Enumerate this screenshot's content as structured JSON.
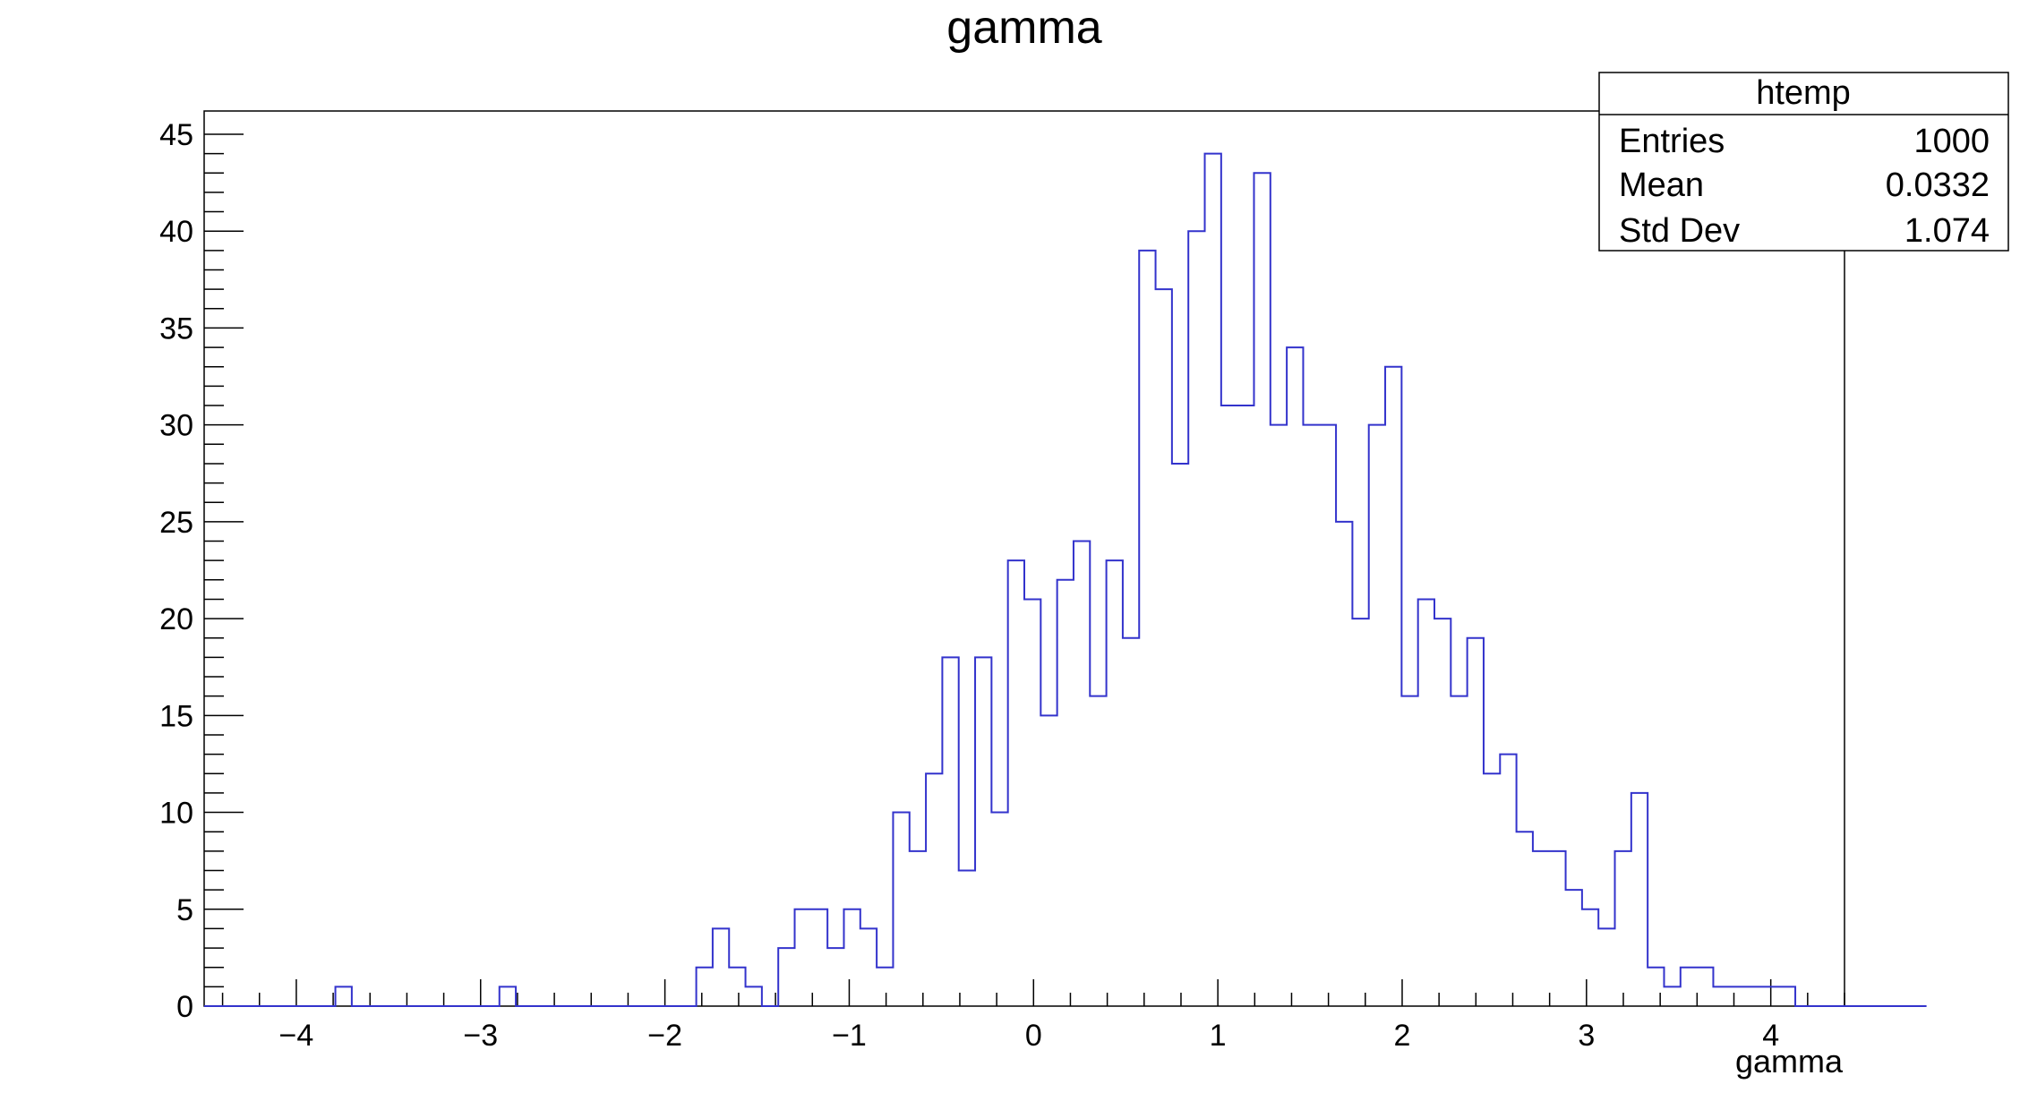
{
  "chart_data": {
    "type": "bar",
    "title": "gamma",
    "xlabel": "gamma",
    "ylabel": "",
    "xlim": [
      -4.5,
      4.4
    ],
    "ylim": [
      0,
      46.2
    ],
    "x_ticks": [
      -4,
      -3,
      -2,
      -1,
      0,
      1,
      2,
      3,
      4
    ],
    "x_tick_labels": [
      "−4",
      "−3",
      "−2",
      "−1",
      "0",
      "1",
      "2",
      "3",
      "4"
    ],
    "y_ticks": [
      0,
      5,
      10,
      15,
      20,
      25,
      30,
      35,
      40,
      45
    ],
    "y_tick_labels": [
      "0",
      "5",
      "10",
      "15",
      "20",
      "25",
      "30",
      "35",
      "40",
      "45"
    ],
    "bin_edges_start": -4.5,
    "bin_width": 0.089,
    "values": [
      0,
      0,
      0,
      0,
      0,
      0,
      0,
      0,
      1,
      0,
      0,
      0,
      0,
      0,
      0,
      0,
      0,
      0,
      1,
      0,
      0,
      0,
      0,
      0,
      0,
      0,
      0,
      0,
      0,
      0,
      2,
      4,
      2,
      1,
      0,
      3,
      5,
      5,
      3,
      5,
      4,
      2,
      10,
      8,
      12,
      18,
      7,
      18,
      10,
      23,
      21,
      15,
      22,
      24,
      16,
      23,
      19,
      39,
      37,
      28,
      40,
      44,
      31,
      31,
      43,
      30,
      34,
      30,
      30,
      25,
      20,
      30,
      33,
      16,
      21,
      20,
      16,
      19,
      12,
      13,
      9,
      8,
      8,
      6,
      5,
      4,
      8,
      11,
      2,
      1,
      2,
      2,
      1,
      1,
      1,
      1,
      1,
      0,
      0,
      0,
      0,
      0,
      0,
      0,
      0
    ],
    "series": [
      {
        "name": "htemp",
        "color": "#3333cc"
      }
    ],
    "grid": false,
    "legend": "top-right"
  },
  "stats": {
    "name": "htemp",
    "rows": [
      {
        "label": "Entries",
        "value": "1000"
      },
      {
        "label": "Mean",
        "value": "0.0332"
      },
      {
        "label": "Std Dev",
        "value": "1.074"
      }
    ]
  }
}
